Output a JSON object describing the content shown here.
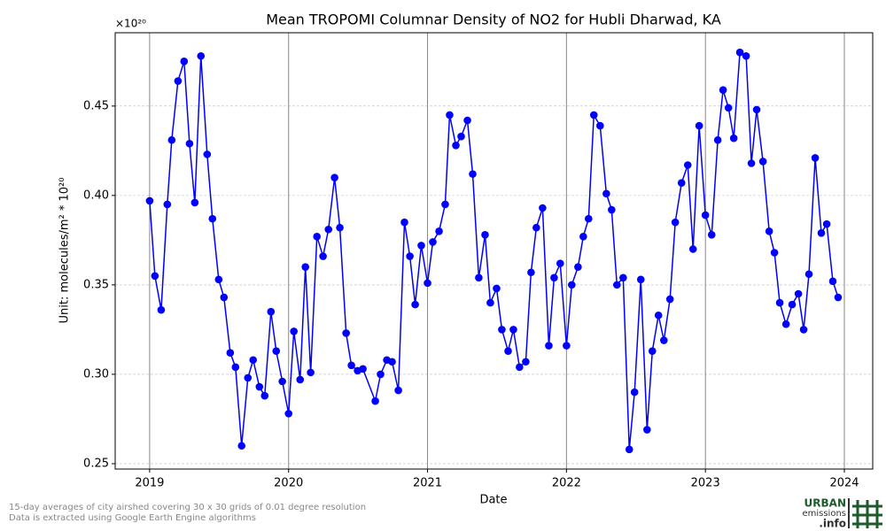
{
  "chart_data": {
    "type": "line",
    "title": "Mean TROPOMI Columnar Density of NO2 for Hubli Dharwad, KA",
    "x_label": "Date",
    "y_label": "Unit: molecules/m² * 10²⁰",
    "y_offset_label": "×10²⁰",
    "footnotes": [
      "15-day averages of city airshed covering 30 x 30 grids of 0.01 degree resolution",
      "Data is extracted using Google Earth Engine algorithms"
    ],
    "logo": [
      "URBAN",
      "emissions",
      ".info"
    ],
    "xlim": [
      2018.752,
      2024.204
    ],
    "xticks": [
      2019,
      2020,
      2021,
      2022,
      2023,
      2024
    ],
    "ylim": [
      0.247,
      0.491
    ],
    "yticks": [
      0.25,
      {
        "value": 0.3,
        "label": "0.30"
      },
      0.35,
      {
        "value": 0.4,
        "label": "0.40"
      },
      0.45
    ],
    "grid": true,
    "x": [
      2019.0,
      2019.038,
      2019.083,
      2019.127,
      2019.159,
      2019.204,
      2019.248,
      2019.287,
      2019.325,
      2019.369,
      2019.414,
      2019.452,
      2019.497,
      2019.535,
      2019.58,
      2019.618,
      2019.662,
      2019.707,
      2019.745,
      2019.79,
      2019.828,
      2019.873,
      2019.911,
      2019.955,
      2020.0,
      2020.038,
      2020.083,
      2020.121,
      2020.159,
      2020.204,
      2020.248,
      2020.287,
      2020.331,
      2020.369,
      2020.414,
      2020.452,
      2020.497,
      2020.535,
      2020.624,
      2020.662,
      2020.707,
      2020.745,
      2020.79,
      2020.834,
      2020.873,
      2020.911,
      2020.955,
      2021.0,
      2021.038,
      2021.083,
      2021.127,
      2021.159,
      2021.204,
      2021.242,
      2021.287,
      2021.325,
      2021.369,
      2021.414,
      2021.452,
      2021.497,
      2021.535,
      2021.58,
      2021.618,
      2021.662,
      2021.707,
      2021.745,
      2021.783,
      2021.828,
      2021.873,
      2021.911,
      2021.955,
      2022.0,
      2022.038,
      2022.083,
      2022.121,
      2022.159,
      2022.197,
      2022.242,
      2022.287,
      2022.325,
      2022.363,
      2022.408,
      2022.452,
      2022.49,
      2022.535,
      2022.58,
      2022.618,
      2022.662,
      2022.701,
      2022.745,
      2022.783,
      2022.828,
      2022.873,
      2022.911,
      2022.955,
      2023.0,
      2023.045,
      2023.089,
      2023.127,
      2023.166,
      2023.204,
      2023.248,
      2023.293,
      2023.331,
      2023.369,
      2023.414,
      2023.459,
      2023.497,
      2023.535,
      2023.58,
      2023.624,
      2023.669,
      2023.707,
      2023.745,
      2023.79,
      2023.834,
      2023.873,
      2023.917,
      2023.955
    ],
    "series": [
      {
        "color": "#0000ff",
        "values": [
          0.397,
          0.355,
          0.336,
          0.395,
          0.431,
          0.464,
          0.475,
          0.429,
          0.396,
          0.478,
          0.423,
          0.387,
          0.353,
          0.343,
          0.312,
          0.304,
          0.26,
          0.298,
          0.308,
          0.293,
          0.288,
          0.335,
          0.313,
          0.296,
          0.278,
          0.324,
          0.297,
          0.36,
          0.301,
          0.377,
          0.366,
          0.381,
          0.41,
          0.382,
          0.323,
          0.305,
          0.302,
          0.303,
          0.285,
          0.3,
          0.308,
          0.307,
          0.291,
          0.385,
          0.366,
          0.339,
          0.372,
          0.351,
          0.374,
          0.38,
          0.395,
          0.445,
          0.428,
          0.433,
          0.442,
          0.412,
          0.354,
          0.378,
          0.34,
          0.348,
          0.325,
          0.313,
          0.325,
          0.304,
          0.307,
          0.357,
          0.382,
          0.393,
          0.316,
          0.354,
          0.362,
          0.316,
          0.35,
          0.36,
          0.377,
          0.387,
          0.445,
          0.439,
          0.401,
          0.392,
          0.35,
          0.354,
          0.258,
          0.29,
          0.353,
          0.269,
          0.313,
          0.333,
          0.319,
          0.342,
          0.385,
          0.407,
          0.417,
          0.37,
          0.439,
          0.389,
          0.378,
          0.431,
          0.459,
          0.449,
          0.432,
          0.48,
          0.478,
          0.418,
          0.448,
          0.419,
          0.38,
          0.368,
          0.34,
          0.328,
          0.339,
          0.345,
          0.325,
          0.356,
          0.421,
          0.379,
          0.384,
          0.352,
          0.343
        ]
      }
    ]
  }
}
